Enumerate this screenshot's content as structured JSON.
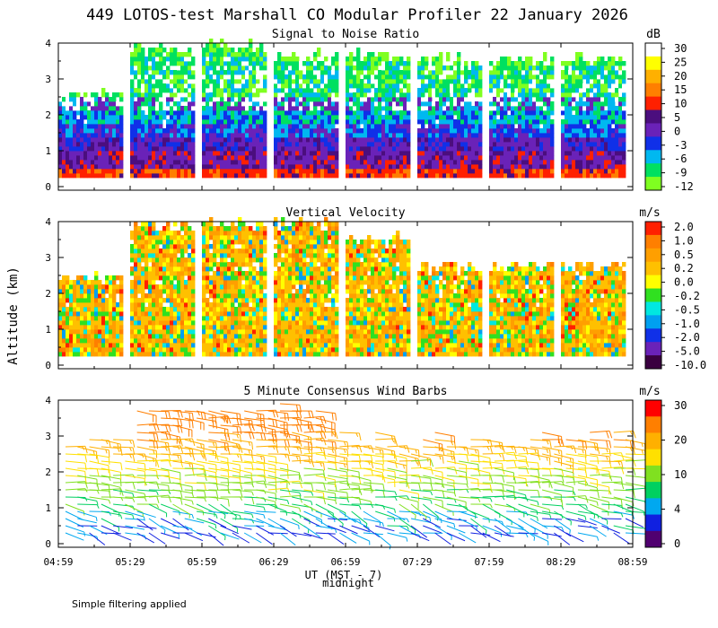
{
  "title": "449 LOTOS-test Marshall CO Modular Profiler 22 January 2026",
  "ylabel": "Altitude (km)",
  "xlabel": "UT (MST - 7)",
  "midnight_label": "midnight",
  "footnote": "Simple filtering applied",
  "x_ticks": [
    "04:59",
    "05:29",
    "05:59",
    "06:29",
    "06:59",
    "07:29",
    "07:59",
    "08:29",
    "08:59"
  ],
  "y_ticks": [
    "0",
    "1",
    "2",
    "3",
    "4"
  ],
  "colors": {
    "background": "#ffffff",
    "text": "#000000"
  },
  "chart_data": [
    {
      "type": "heatmap",
      "title": "Signal to Noise Ratio",
      "units": "dB",
      "ylim": [
        0,
        4
      ],
      "colorbar": {
        "labels": [
          "30",
          "25",
          "20",
          "15",
          "10",
          "5",
          "0",
          "-3",
          "-6",
          "-9",
          "-12"
        ],
        "colors": [
          "#ffffff",
          "#ffff00",
          "#ffb000",
          "#ff7f00",
          "#ff2000",
          "#4b0e7e",
          "#6a22b8",
          "#1030e8",
          "#00b8f0",
          "#00e060",
          "#7fff20"
        ]
      },
      "blocks": [
        {
          "start": "04:59",
          "end": "05:26",
          "top_km": 2.5
        },
        {
          "start": "05:29",
          "end": "05:56",
          "top_km": 3.8
        },
        {
          "start": "05:59",
          "end": "06:26",
          "top_km": 3.9
        },
        {
          "start": "06:29",
          "end": "06:56",
          "top_km": 3.6
        },
        {
          "start": "06:59",
          "end": "07:26",
          "top_km": 3.6
        },
        {
          "start": "07:29",
          "end": "07:56",
          "top_km": 3.5
        },
        {
          "start": "07:59",
          "end": "08:26",
          "top_km": 3.5
        },
        {
          "start": "08:29",
          "end": "08:56",
          "top_km": 3.5
        }
      ]
    },
    {
      "type": "heatmap",
      "title": "Vertical Velocity",
      "units": "m/s",
      "ylim": [
        0,
        4
      ],
      "colorbar": {
        "labels": [
          "2.0",
          "1.0",
          "0.5",
          "0.2",
          "0.0",
          "-0.2",
          "-0.5",
          "-1.0",
          "-2.0",
          "-5.0",
          "-10.0"
        ],
        "colors": [
          "#ff2000",
          "#ff7f00",
          "#ff9f00",
          "#ffc000",
          "#ffff00",
          "#30e020",
          "#00e8e0",
          "#00a0f0",
          "#1030e8",
          "#6a22b8",
          "#3a0040"
        ]
      },
      "blocks": [
        {
          "start": "04:59",
          "end": "05:26",
          "top_km": 2.4
        },
        {
          "start": "05:29",
          "end": "05:56",
          "top_km": 3.8
        },
        {
          "start": "05:59",
          "end": "06:26",
          "top_km": 3.9
        },
        {
          "start": "06:29",
          "end": "06:56",
          "top_km": 3.9
        },
        {
          "start": "06:59",
          "end": "07:26",
          "top_km": 3.5
        },
        {
          "start": "07:29",
          "end": "07:56",
          "top_km": 2.7
        },
        {
          "start": "07:59",
          "end": "08:26",
          "top_km": 2.7
        },
        {
          "start": "08:29",
          "end": "08:56",
          "top_km": 2.7
        }
      ]
    },
    {
      "type": "wind_barbs",
      "title": "5 Minute Consensus Wind Barbs",
      "units": "m/s",
      "ylim": [
        0,
        4
      ],
      "colorbar": {
        "labels": [
          "30",
          "20",
          "10",
          "4",
          "0"
        ],
        "colors": [
          "#ff0000",
          "#ff7f00",
          "#ffb000",
          "#ffe000",
          "#80e020",
          "#00d060",
          "#00a8f0",
          "#1020e0",
          "#500070"
        ]
      },
      "time_range": [
        "04:59",
        "08:59"
      ],
      "approx_speed_by_height": [
        [
          0.3,
          4
        ],
        [
          0.8,
          5
        ],
        [
          1.2,
          9
        ],
        [
          1.7,
          11
        ],
        [
          2.2,
          13
        ],
        [
          2.6,
          16
        ],
        [
          3.2,
          22
        ],
        [
          3.7,
          24
        ]
      ]
    }
  ]
}
